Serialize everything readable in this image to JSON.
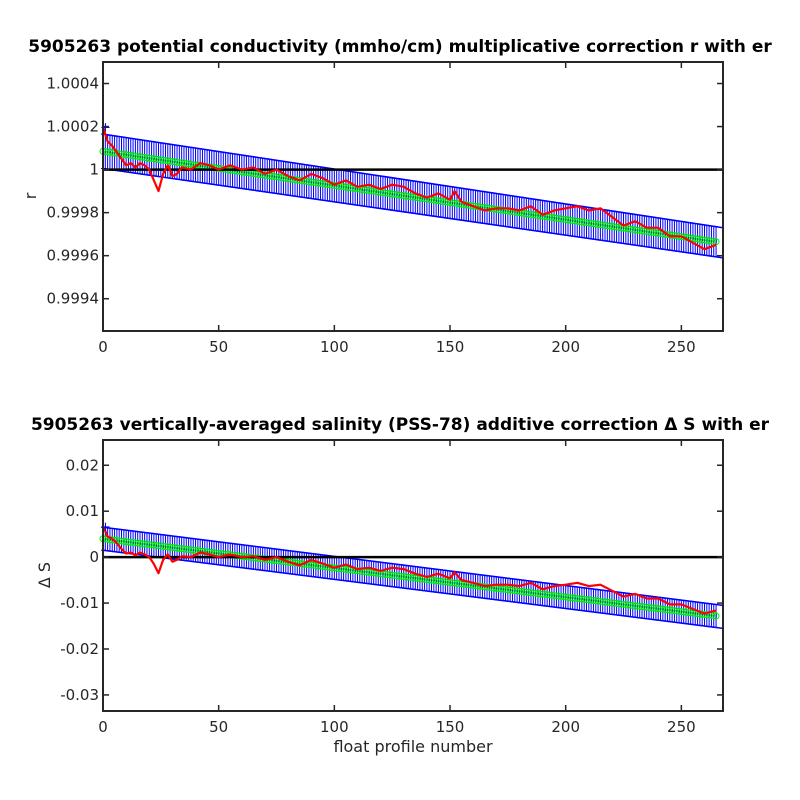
{
  "colors": {
    "error_band": "#0000ff",
    "fit": "#00ee00",
    "measured": "#ff0000",
    "reference": "#000000"
  },
  "chart_data": [
    {
      "type": "line",
      "title": "5905263 potential conductivity (mmho/cm) multiplicative correction r with er",
      "xlabel": "",
      "ylabel": "r",
      "xlim": [
        0,
        268
      ],
      "ylim": [
        0.99925,
        1.0005
      ],
      "xticks": [
        0,
        50,
        100,
        150,
        200,
        250
      ],
      "yticks": [
        0.9994,
        0.9996,
        0.9998,
        1,
        1.0002,
        1.0004
      ],
      "ytick_labels": [
        "0.9994",
        "0.9996",
        "0.9998",
        "1",
        "1.0002",
        "1.0004"
      ],
      "grid": false,
      "reference_line": 1,
      "fit": {
        "x": [
          0,
          268
        ],
        "y": [
          1.000085,
          0.99966
        ]
      },
      "error_upper": {
        "x": [
          0,
          268
        ],
        "y": [
          1.000165,
          0.99973
        ]
      },
      "error_lower": {
        "x": [
          0,
          268
        ],
        "y": [
          1.000005,
          0.99959
        ]
      },
      "series": [
        {
          "x": [
            0,
            2,
            4,
            6,
            8,
            10,
            12,
            14,
            16,
            18,
            20,
            22,
            24,
            26,
            28,
            30,
            32,
            34,
            38,
            42,
            46,
            50,
            55,
            60,
            65,
            70,
            75,
            80,
            85,
            90,
            95,
            100,
            105,
            110,
            115,
            120,
            125,
            130,
            135,
            140,
            145,
            150,
            152,
            155,
            160,
            165,
            170,
            175,
            180,
            185,
            190,
            195,
            200,
            205,
            210,
            215,
            220,
            225,
            230,
            235,
            240,
            245,
            250,
            255,
            260,
            265
          ],
          "y": [
            1.0002,
            1.00013,
            1.00011,
            1.00008,
            1.00005,
            1.00002,
            1.00003,
            1.00001,
            1.00003,
            1.00002,
            1.0,
            0.99995,
            0.9999,
            0.99998,
            1.00002,
            0.99997,
            0.99998,
            1.00001,
            1.0,
            1.00003,
            1.00002,
            1.0,
            1.00002,
            1.0,
            1.00001,
            0.99998,
            1.0,
            0.99997,
            0.99995,
            0.99998,
            0.99996,
            0.99993,
            0.99995,
            0.99992,
            0.99993,
            0.99991,
            0.99993,
            0.99992,
            0.99989,
            0.99987,
            0.99989,
            0.99986,
            0.9999,
            0.99985,
            0.99983,
            0.99981,
            0.99982,
            0.99982,
            0.99981,
            0.99983,
            0.99979,
            0.99981,
            0.99982,
            0.99983,
            0.99981,
            0.99982,
            0.99978,
            0.99974,
            0.99976,
            0.99973,
            0.99973,
            0.99969,
            0.99969,
            0.99966,
            0.99963,
            0.99965
          ]
        }
      ]
    },
    {
      "type": "line",
      "title": "5905263 vertically-averaged salinity (PSS-78) additive correction Δ S with er",
      "xlabel": "float profile number",
      "ylabel": "Δ S",
      "xlim": [
        0,
        268
      ],
      "ylim": [
        -0.0335,
        0.0255
      ],
      "xticks": [
        0,
        50,
        100,
        150,
        200,
        250
      ],
      "yticks": [
        -0.03,
        -0.02,
        -0.01,
        0,
        0.01,
        0.02
      ],
      "ytick_labels": [
        "-0.03",
        "-0.02",
        "-0.01",
        "0",
        "0.01",
        "0.02"
      ],
      "grid": false,
      "reference_line": 0,
      "fit": {
        "x": [
          0,
          268
        ],
        "y": [
          0.004,
          -0.013
        ]
      },
      "error_upper": {
        "x": [
          0,
          268
        ],
        "y": [
          0.0065,
          -0.0105
        ]
      },
      "error_lower": {
        "x": [
          0,
          268
        ],
        "y": [
          0.0015,
          -0.0155
        ]
      },
      "series": [
        {
          "x": [
            0,
            2,
            4,
            6,
            8,
            10,
            12,
            14,
            16,
            18,
            20,
            22,
            24,
            26,
            28,
            30,
            32,
            34,
            38,
            42,
            46,
            50,
            55,
            60,
            65,
            70,
            75,
            80,
            85,
            90,
            95,
            100,
            105,
            110,
            115,
            120,
            125,
            130,
            135,
            140,
            145,
            150,
            152,
            155,
            160,
            165,
            170,
            175,
            180,
            185,
            190,
            195,
            200,
            205,
            210,
            215,
            220,
            225,
            230,
            235,
            240,
            245,
            250,
            255,
            260,
            265
          ],
          "y": [
            0.0068,
            0.0045,
            0.004,
            0.003,
            0.0018,
            0.0008,
            0.001,
            0.0004,
            0.001,
            0.0006,
            0.0,
            -0.0015,
            -0.0035,
            -0.0006,
            0.0006,
            -0.001,
            -0.0006,
            0.0002,
            0.0,
            0.001,
            0.0006,
            0.0,
            0.0006,
            0.0,
            0.0002,
            -0.0006,
            0.0,
            -0.001,
            -0.0018,
            -0.0006,
            -0.0014,
            -0.0023,
            -0.0016,
            -0.0026,
            -0.0023,
            -0.003,
            -0.0023,
            -0.0026,
            -0.0036,
            -0.0043,
            -0.0036,
            -0.0046,
            -0.0033,
            -0.005,
            -0.0056,
            -0.0063,
            -0.006,
            -0.006,
            -0.0063,
            -0.0056,
            -0.007,
            -0.0063,
            -0.006,
            -0.0056,
            -0.0063,
            -0.006,
            -0.0073,
            -0.0086,
            -0.008,
            -0.009,
            -0.009,
            -0.0103,
            -0.0103,
            -0.0113,
            -0.0123,
            -0.0116
          ]
        }
      ]
    }
  ]
}
